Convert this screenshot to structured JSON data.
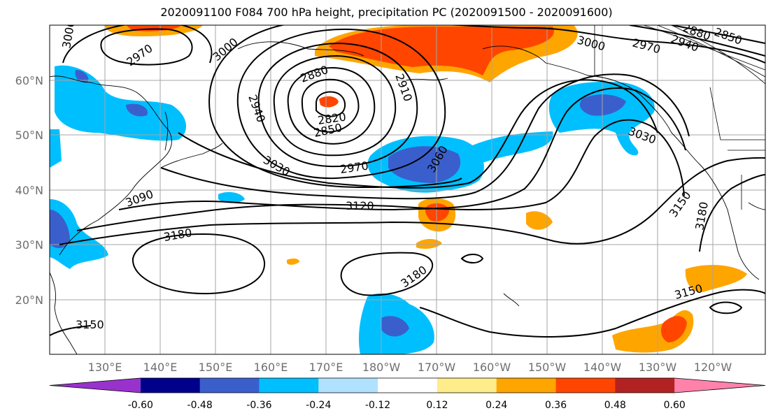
{
  "title": "2020091100 F084 700 hPa height, precipitation PC (2020091500 - 2020091600)",
  "axes": {
    "lat_labels": [
      "60°N",
      "50°N",
      "40°N",
      "30°N",
      "20°N"
    ],
    "lon_labels": [
      "130°E",
      "140°E",
      "150°E",
      "160°E",
      "170°E",
      "180°W",
      "170°W",
      "160°W",
      "150°W",
      "140°W",
      "130°W",
      "120°W"
    ]
  },
  "contour_labels": [
    "3000",
    "2970",
    "3000",
    "2880",
    "2910",
    "2940",
    "2820",
    "2850",
    "3030",
    "2970",
    "3060",
    "3000",
    "2970",
    "2940",
    "2880",
    "2850",
    "3030",
    "3090",
    "3120",
    "3180",
    "3180",
    "3150",
    "3180",
    "3150",
    "3150"
  ],
  "colorbar": {
    "colors": [
      "#9932cc",
      "#00008b",
      "#3a5fcd",
      "#00bfff",
      "#b0e2ff",
      "#ffffff",
      "#ffec8b",
      "#ffa500",
      "#ff4500",
      "#b22222",
      "#ff82ab"
    ],
    "tick_labels": [
      "-0.60",
      "-0.48",
      "-0.36",
      "-0.24",
      "-0.12",
      "0.12",
      "0.24",
      "0.36",
      "0.48",
      "0.60"
    ]
  },
  "chart_data": {
    "type": "heatmap",
    "title": "2020091100 F084 700 hPa height, precipitation PC (2020091500 - 2020091600)",
    "lat_range": [
      10,
      70
    ],
    "lon_range_east": [
      120,
      250
    ],
    "contour_variable": "700 hPa height",
    "contour_levels": [
      2820,
      2850,
      2880,
      2910,
      2940,
      2970,
      3000,
      3030,
      3060,
      3090,
      3120,
      3150,
      3180
    ],
    "shaded_variable": "precipitation PC",
    "shading_bounds": [
      -0.6,
      -0.48,
      -0.36,
      -0.24,
      -0.12,
      0.12,
      0.24,
      0.36,
      0.48,
      0.6
    ],
    "low_center": {
      "lat": 55,
      "lon_east": 170,
      "value": 2820
    },
    "grid": true
  }
}
